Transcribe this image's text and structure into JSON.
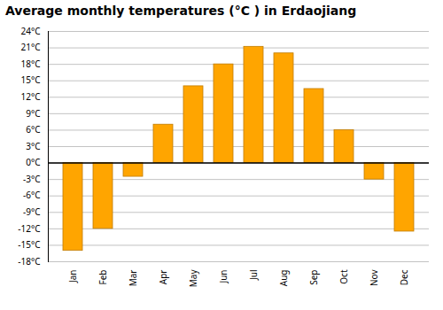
{
  "chart_data": {
    "type": "bar",
    "title": "Average monthly temperatures (°C ) in Erdaojiang",
    "categories": [
      "Jan",
      "Feb",
      "Mar",
      "Apr",
      "May",
      "Jun",
      "Jul",
      "Aug",
      "Sep",
      "Oct",
      "Nov",
      "Dec"
    ],
    "values": [
      -16.0,
      -12.0,
      -2.5,
      7.0,
      14.0,
      18.0,
      21.2,
      20.0,
      13.5,
      6.0,
      -3.0,
      -12.5
    ],
    "color": "#FFA500",
    "ylim": [
      -18,
      24
    ],
    "yticks": [
      {
        "value": -18,
        "label": "-18°C"
      },
      {
        "value": -15,
        "label": "-15°C"
      },
      {
        "value": -12,
        "label": "-12°C"
      },
      {
        "value": -9,
        "label": "-9°C"
      },
      {
        "value": -6,
        "label": "-6°C"
      },
      {
        "value": -3,
        "label": "-3°C"
      },
      {
        "value": 0,
        "label": "0°C"
      },
      {
        "value": 3,
        "label": "3°C"
      },
      {
        "value": 6,
        "label": "6°C"
      },
      {
        "value": 9,
        "label": "9°C"
      },
      {
        "value": 12,
        "label": "12°C"
      },
      {
        "value": 15,
        "label": "15°C"
      },
      {
        "value": 18,
        "label": "18°C"
      },
      {
        "value": 21,
        "label": "21°C"
      },
      {
        "value": 24,
        "label": "24°C"
      }
    ],
    "grid": true
  }
}
